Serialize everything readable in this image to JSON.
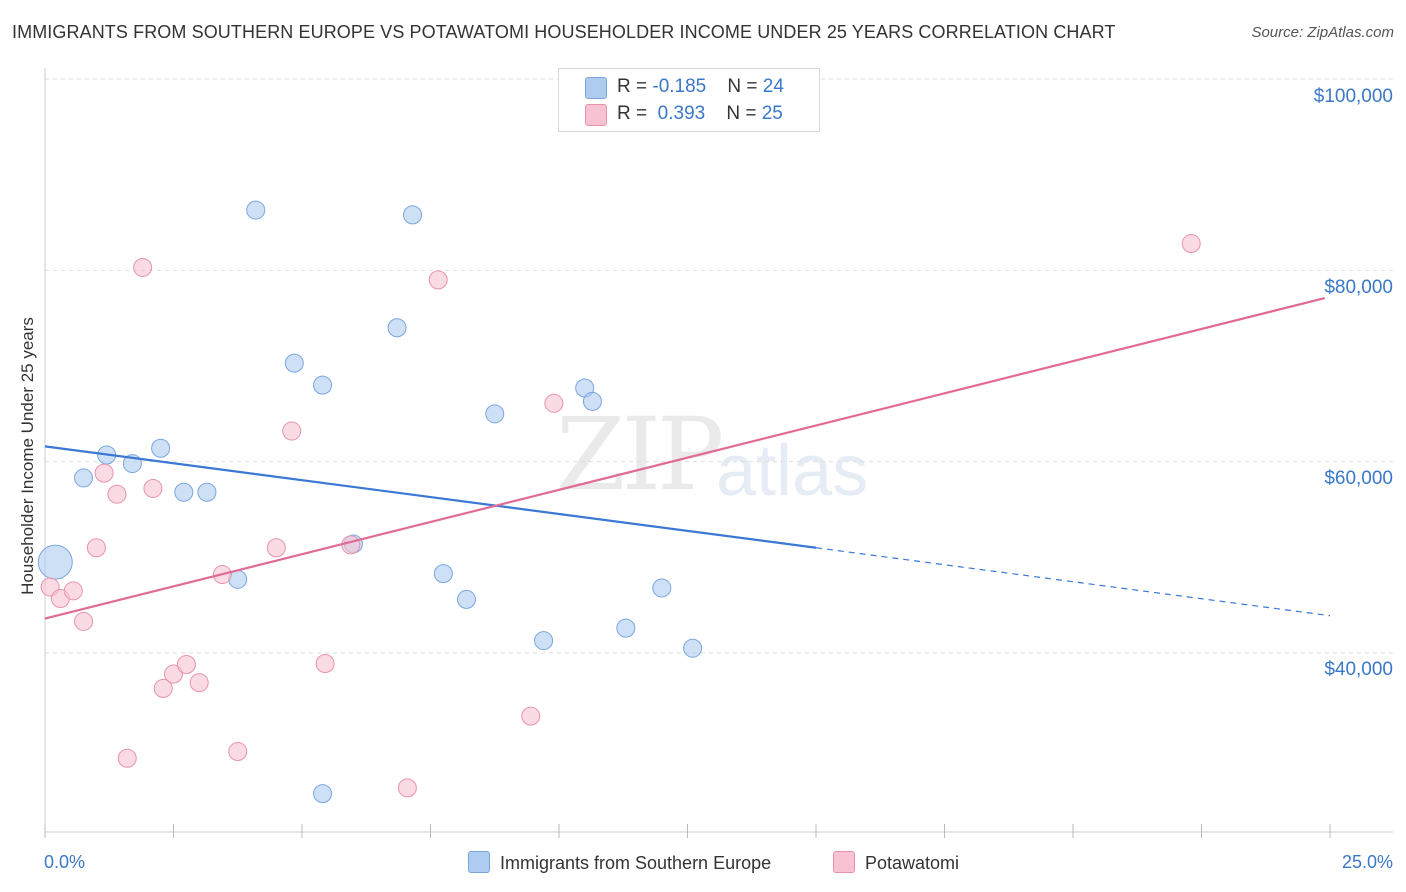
{
  "header": {
    "title": "IMMIGRANTS FROM SOUTHERN EUROPE VS POTAWATOMI HOUSEHOLDER INCOME UNDER 25 YEARS CORRELATION CHART",
    "source": "Source: ZipAtlas.com"
  },
  "legend": {
    "rows": [
      {
        "r_label": "R = ",
        "r_value": "-0.185",
        "n_label": "N = ",
        "n_value": "24"
      },
      {
        "r_label": "R = ",
        "r_value": " 0.393",
        "n_label": "N = ",
        "n_value": "25"
      }
    ],
    "bottom": [
      "Immigrants from Southern Europe",
      "Potawatomi"
    ]
  },
  "watermark": {
    "zip": "ZIP",
    "atlas": "atlas"
  },
  "colors": {
    "blue_fill": "#aecbf0",
    "blue_stroke": "#7aa6de",
    "blue_line": "#3a78d4",
    "pink_fill": "#f7c3d2",
    "pink_stroke": "#e893ad",
    "pink_line": "#e06b96",
    "tick_text": "#3a78c9",
    "grid": "#dddddd"
  },
  "chart_data": {
    "type": "scatter",
    "title": "IMMIGRANTS FROM SOUTHERN EUROPE VS POTAWATOMI HOUSEHOLDER INCOME UNDER 25 YEARS CORRELATION CHART",
    "xlabel": "",
    "ylabel": "Householder Income Under 25 years",
    "xlim": [
      0,
      25
    ],
    "ylim": [
      20000,
      104000
    ],
    "x_tick_labels": [
      "0.0%",
      "25.0%"
    ],
    "y_tick_labels": [
      "$40,000",
      "$60,000",
      "$80,000",
      "$100,000"
    ],
    "y_ticks": [
      40000,
      60000,
      80000,
      100000
    ],
    "grid": true,
    "legend_position": "top-center",
    "series": [
      {
        "name": "Immigrants from Southern Europe",
        "color": "#aecbf0",
        "points": [
          {
            "x": 0.2,
            "y": 49500,
            "size": "large"
          },
          {
            "x": 0.75,
            "y": 58300
          },
          {
            "x": 1.2,
            "y": 60700
          },
          {
            "x": 1.7,
            "y": 59800
          },
          {
            "x": 2.25,
            "y": 61400
          },
          {
            "x": 2.7,
            "y": 56800
          },
          {
            "x": 3.15,
            "y": 56800
          },
          {
            "x": 3.75,
            "y": 47700
          },
          {
            "x": 4.1,
            "y": 86300
          },
          {
            "x": 4.85,
            "y": 70300
          },
          {
            "x": 5.4,
            "y": 68000
          },
          {
            "x": 5.4,
            "y": 25300
          },
          {
            "x": 6.0,
            "y": 51400
          },
          {
            "x": 6.85,
            "y": 74000
          },
          {
            "x": 7.15,
            "y": 85800
          },
          {
            "x": 7.75,
            "y": 48300
          },
          {
            "x": 8.2,
            "y": 45600
          },
          {
            "x": 8.75,
            "y": 65000
          },
          {
            "x": 9.7,
            "y": 41300
          },
          {
            "x": 10.5,
            "y": 67700
          },
          {
            "x": 10.65,
            "y": 66300
          },
          {
            "x": 11.3,
            "y": 42600
          },
          {
            "x": 12.0,
            "y": 46800
          },
          {
            "x": 12.6,
            "y": 40500
          }
        ],
        "trend": {
          "x0": 0,
          "y0": 61600,
          "x1": 15,
          "y1": 51000,
          "dashed_to_x": 25,
          "dashed_to_y": 43900
        }
      },
      {
        "name": "Potawatomi",
        "color": "#f7c3d2",
        "points": [
          {
            "x": 0.1,
            "y": 46900
          },
          {
            "x": 0.3,
            "y": 45700
          },
          {
            "x": 0.55,
            "y": 46500
          },
          {
            "x": 0.75,
            "y": 43300
          },
          {
            "x": 1.0,
            "y": 51000
          },
          {
            "x": 1.15,
            "y": 58800
          },
          {
            "x": 1.4,
            "y": 56600
          },
          {
            "x": 1.6,
            "y": 29000
          },
          {
            "x": 1.9,
            "y": 80300
          },
          {
            "x": 2.1,
            "y": 57200
          },
          {
            "x": 2.3,
            "y": 36300
          },
          {
            "x": 2.5,
            "y": 37800
          },
          {
            "x": 2.75,
            "y": 38800
          },
          {
            "x": 3.0,
            "y": 36900
          },
          {
            "x": 3.45,
            "y": 48200
          },
          {
            "x": 3.75,
            "y": 29700
          },
          {
            "x": 4.5,
            "y": 51000
          },
          {
            "x": 4.8,
            "y": 63200
          },
          {
            "x": 5.45,
            "y": 38900
          },
          {
            "x": 5.95,
            "y": 51300
          },
          {
            "x": 7.05,
            "y": 25900
          },
          {
            "x": 7.65,
            "y": 79000
          },
          {
            "x": 9.45,
            "y": 33400
          },
          {
            "x": 9.9,
            "y": 66100
          },
          {
            "x": 22.3,
            "y": 82800
          }
        ],
        "trend": {
          "x0": 0,
          "y0": 43600,
          "x1": 24.9,
          "y1": 77100
        }
      }
    ]
  }
}
